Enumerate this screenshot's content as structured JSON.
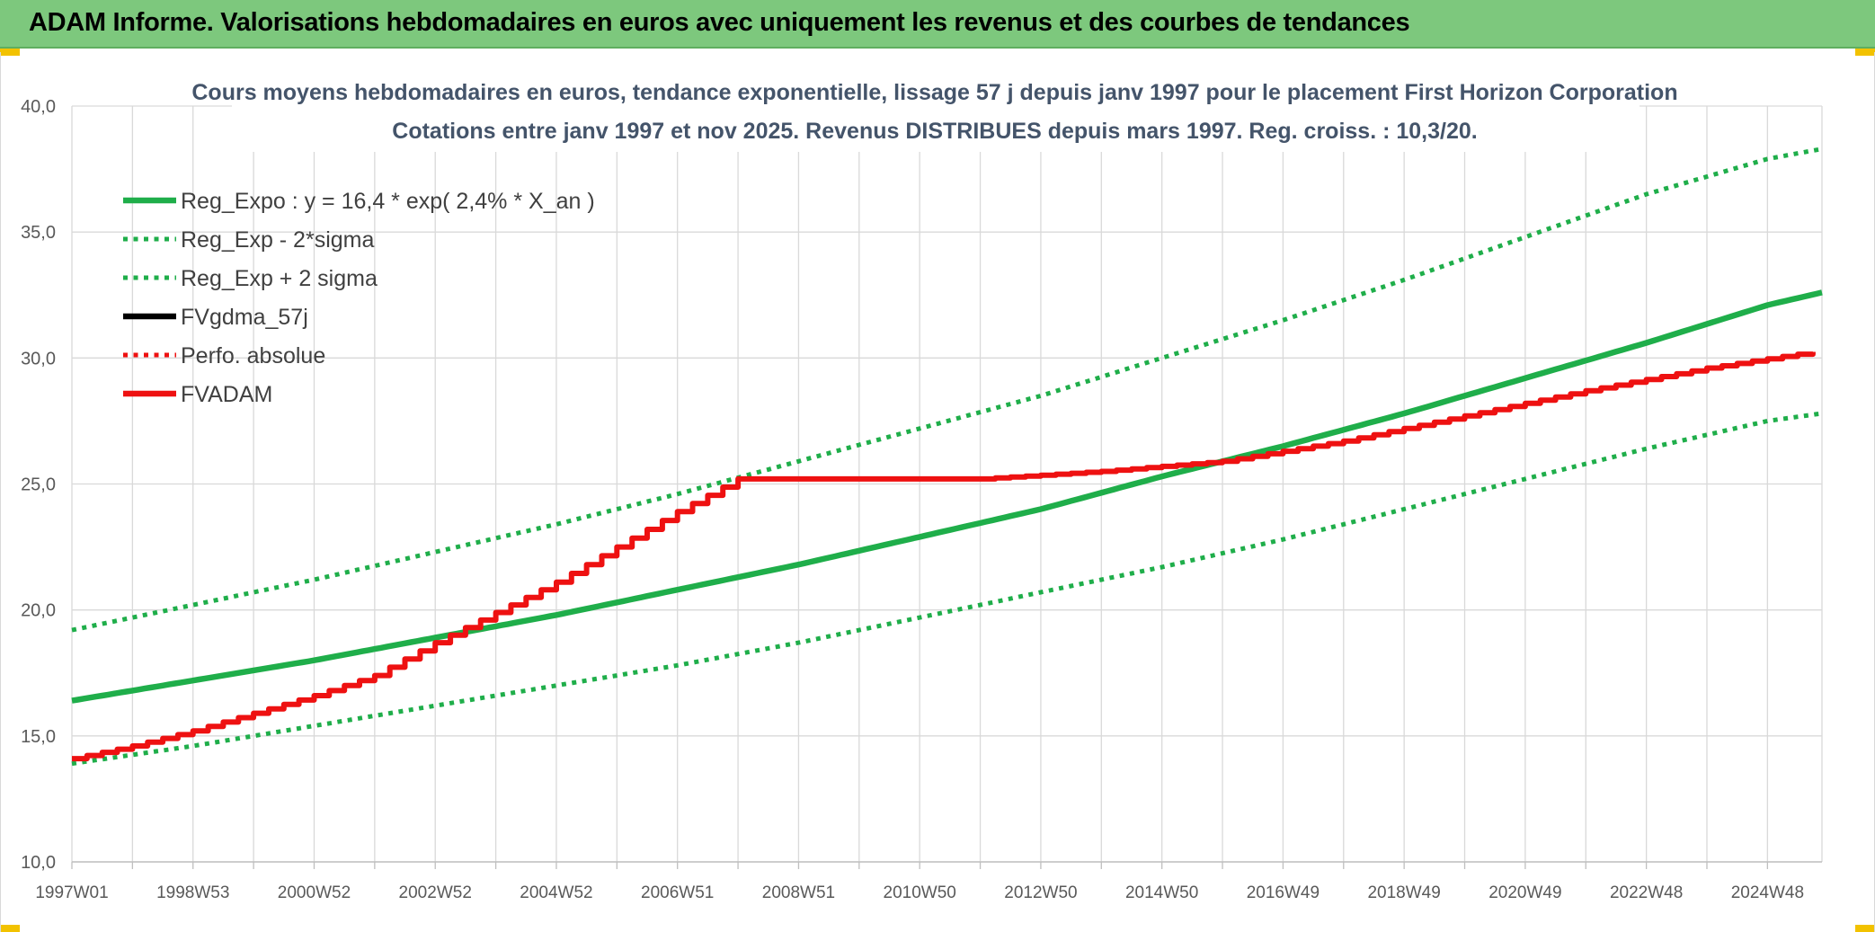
{
  "banner": {
    "title": "ADAM Informe. Valorisations hebdomadaires en euros avec uniquement les revenus et des courbes de tendances"
  },
  "colors": {
    "banner_bg": "#7dc87d",
    "green": "#1fae4a",
    "red": "#ee1111",
    "black": "#000000",
    "grid": "#d9d9d9"
  },
  "chart_data": {
    "type": "line",
    "title": "Cours moyens hebdomadaires en euros, tendance exponentielle, lissage 57 j depuis janv 1997 pour le placement First Horizon Corporation",
    "subtitle": "Cotations entre janv 1997 et nov 2025. Revenus DISTRIBUES depuis mars 1997. Reg. croiss. : 10,3/20.",
    "xlabel": "",
    "ylabel": "",
    "ylim": [
      10,
      40
    ],
    "xlim": [
      1997.0,
      2025.9
    ],
    "y_ticks": [
      "10,0",
      "15,0",
      "20,0",
      "25,0",
      "30,0",
      "35,0",
      "40,0"
    ],
    "y_tick_values": [
      10,
      15,
      20,
      25,
      30,
      35,
      40
    ],
    "x_ticks": [
      "1997W01",
      "1998W53",
      "2000W52",
      "2002W52",
      "2004W52",
      "2006W51",
      "2008W51",
      "2010W50",
      "2012W50",
      "2014W50",
      "2016W49",
      "2018W49",
      "2020W49",
      "2022W48",
      "2024W48"
    ],
    "x_tick_values": [
      1997.0,
      1999.0,
      2001.0,
      2003.0,
      2005.0,
      2007.0,
      2009.0,
      2011.0,
      2013.0,
      2015.0,
      2017.0,
      2019.0,
      2021.0,
      2023.0,
      2025.0
    ],
    "legend_position": "top-left",
    "series": [
      {
        "name": "Reg_Expo : y = 16,4 * exp( 2,4% *  X_an )",
        "style": "solid",
        "color": "#1fae4a",
        "x": [
          1997,
          1999,
          2001,
          2003,
          2005,
          2007,
          2009,
          2011,
          2013,
          2015,
          2017,
          2019,
          2021,
          2023,
          2025,
          2025.9
        ],
        "values": [
          16.4,
          17.2,
          18.0,
          18.9,
          19.8,
          20.8,
          21.8,
          22.9,
          24.0,
          25.3,
          26.5,
          27.8,
          29.2,
          30.6,
          32.1,
          32.6
        ]
      },
      {
        "name": "Reg_Exp - 2*sigma",
        "style": "dotted",
        "color": "#1fae4a",
        "x": [
          1997,
          1999,
          2001,
          2003,
          2005,
          2007,
          2009,
          2011,
          2013,
          2015,
          2017,
          2019,
          2021,
          2023,
          2025,
          2025.9
        ],
        "values": [
          13.9,
          14.6,
          15.4,
          16.2,
          17.0,
          17.8,
          18.7,
          19.7,
          20.7,
          21.7,
          22.8,
          24.0,
          25.2,
          26.4,
          27.5,
          27.8
        ]
      },
      {
        "name": "Reg_Exp + 2 sigma",
        "style": "dotted",
        "color": "#1fae4a",
        "x": [
          1997,
          1999,
          2001,
          2003,
          2005,
          2007,
          2009,
          2011,
          2013,
          2015,
          2017,
          2019,
          2021,
          2023,
          2025,
          2025.9
        ],
        "values": [
          19.2,
          20.2,
          21.2,
          22.3,
          23.4,
          24.6,
          25.9,
          27.2,
          28.5,
          30.0,
          31.5,
          33.1,
          34.8,
          36.5,
          37.9,
          38.3
        ]
      },
      {
        "name": "FVgdma_57j",
        "style": "solid",
        "color": "#000000",
        "x": [],
        "values": []
      },
      {
        "name": "Perfo. absolue",
        "style": "dotted",
        "color": "#ee1111",
        "x": [],
        "values": []
      },
      {
        "name": "FVADAM",
        "style": "solid",
        "color": "#ee1111",
        "x": [
          1997,
          1998,
          1999,
          2000,
          2001,
          2002,
          2003,
          2004,
          2005,
          2006,
          2007,
          2008.0,
          2010,
          2012,
          2014,
          2016,
          2018,
          2020,
          2022,
          2024,
          2025.9
        ],
        "values": [
          14.1,
          14.6,
          15.2,
          15.9,
          16.6,
          17.4,
          18.7,
          19.9,
          21.1,
          22.5,
          23.9,
          25.2,
          25.2,
          25.2,
          25.5,
          25.9,
          26.7,
          27.7,
          28.7,
          29.6,
          30.3
        ]
      }
    ]
  }
}
